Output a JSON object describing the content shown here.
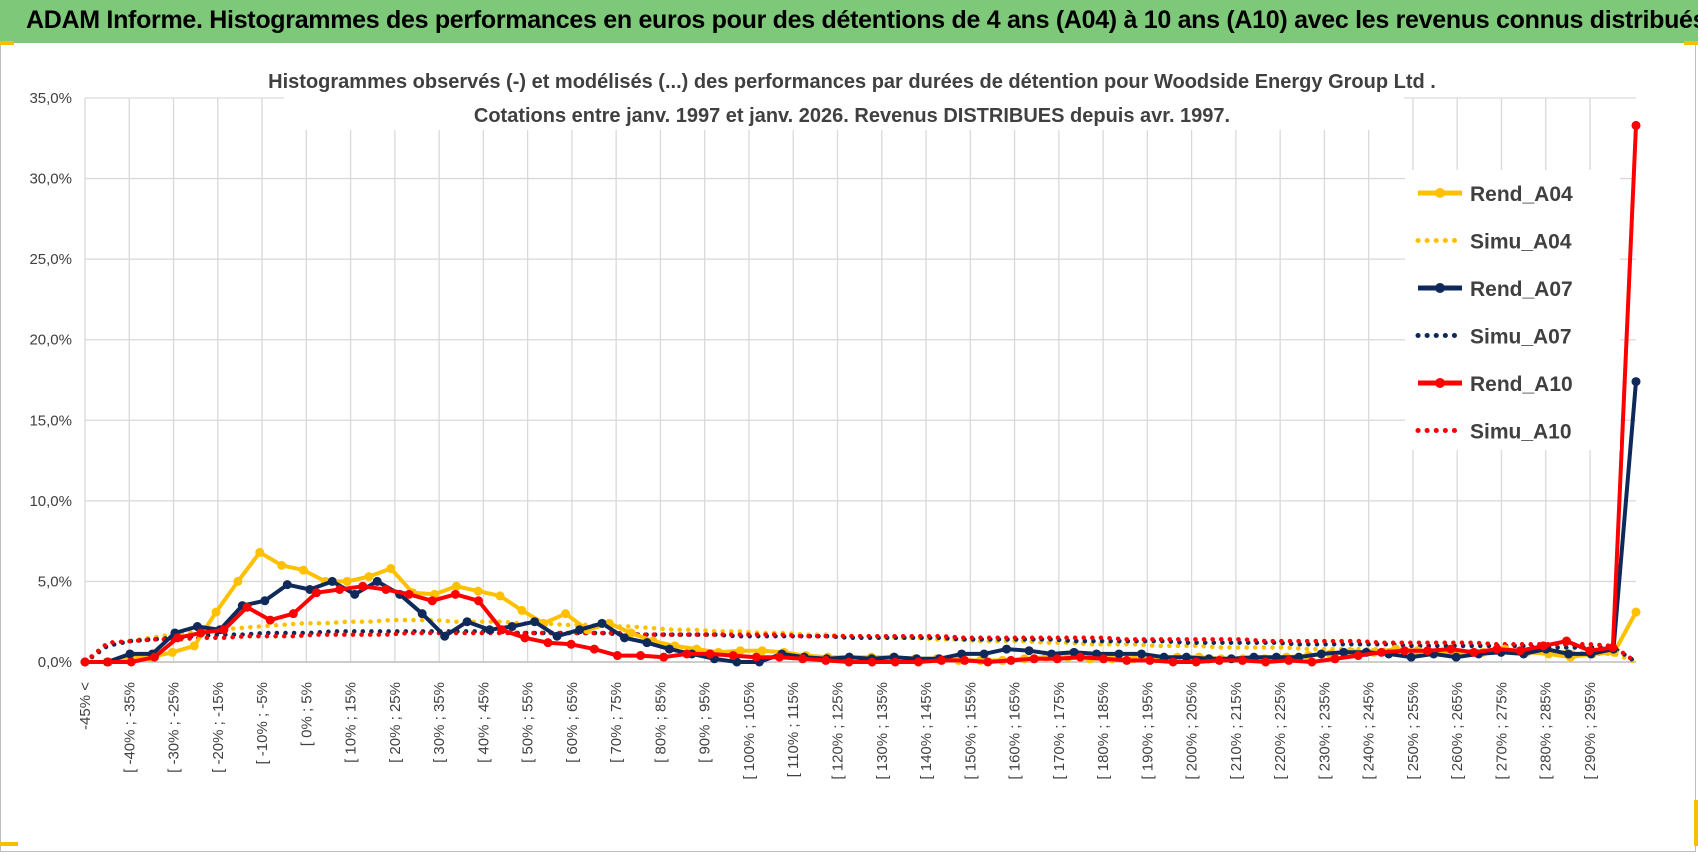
{
  "header": {
    "title": "ADAM Informe. Histogrammes des performances en euros pour des détentions de 4 ans (A04) à 10 ans (A10) avec les revenus connus distribués"
  },
  "colors": {
    "header_bg": "#7ec87a",
    "gold": "#ffc000",
    "navy": "#0f2a5a",
    "red": "#ff0000",
    "grid": "#d9d9d9",
    "text": "#404040"
  },
  "chart_data": {
    "type": "line",
    "title_line1": "Histogrammes observés (-) et modélisés (...) des performances par durées de détention pour Woodside Energy Group Ltd .",
    "title_line2": "Cotations entre janv. 1997 et janv. 2026. Revenus DISTRIBUES depuis avr. 1997.",
    "xlabel": "",
    "ylabel": "",
    "ylim": [
      0,
      35
    ],
    "y_ticks": [
      "0,0%",
      "5,0%",
      "10,0%",
      "15,0%",
      "20,0%",
      "25,0%",
      "30,0%",
      "35,0%"
    ],
    "grid": true,
    "legend_position": "right",
    "x_tick_labels": [
      "-45% <",
      "[ -40% ; -35%",
      "[ -30% ; -25%",
      "[ -20% ; -15%",
      "[ -10% ; -5%",
      "[ 0% ; 5%",
      "[ 10% ; 15%",
      "[ 20% ; 25%",
      "[ 30% ; 35%",
      "[ 40% ; 45%",
      "[ 50% ; 55%",
      "[ 60% ; 65%",
      "[ 70% ; 75%",
      "[ 80% ; 85%",
      "[ 90% ; 95%",
      "[ 100% ; 105%",
      "[ 110% ; 115%",
      "[ 120% ; 125%",
      "[ 130% ; 135%",
      "[ 140% ; 145%",
      "[ 150% ; 155%",
      "[ 160% ; 165%",
      "[ 170% ; 175%",
      "[ 180% ; 185%",
      "[ 190% ; 195%",
      "[ 200% ; 205%",
      "[ 210% ; 215%",
      "[ 220% ; 225%",
      "[ 230% ; 235%",
      "[ 240% ; 245%",
      "[ 250% ; 255%",
      "[ 260% ; 265%",
      "[ 270% ; 275%",
      "[ 280% ; 285%",
      "[ 290% ; 295%"
    ],
    "series": [
      {
        "name": "Rend_A04",
        "style": "solid",
        "color": "#ffc000",
        "markers": true,
        "values": [
          0.0,
          0.0,
          0.3,
          0.3,
          0.6,
          1.0,
          3.1,
          5.0,
          6.8,
          6.0,
          5.7,
          5.0,
          5.0,
          5.3,
          5.8,
          4.3,
          4.2,
          4.7,
          4.4,
          4.1,
          3.2,
          2.4,
          3.0,
          2.0,
          2.4,
          1.8,
          1.3,
          1.0,
          0.8,
          0.6,
          0.7,
          0.7,
          0.6,
          0.4,
          0.3,
          0.3,
          0.3,
          0.3,
          0.2,
          0.2,
          0.1,
          0.1,
          0.1,
          0.2,
          0.3,
          0.3,
          0.2,
          0.2,
          0.2,
          0.2,
          0.3,
          0.3,
          0.2,
          0.2,
          0.2,
          0.3,
          0.4,
          0.5,
          0.6,
          0.6,
          0.8,
          0.7,
          0.6,
          0.5,
          0.6,
          0.8,
          0.6,
          0.5,
          0.3,
          0.5,
          0.6,
          3.1
        ]
      },
      {
        "name": "Simu_A04",
        "style": "dotted",
        "color": "#ffc000",
        "markers": false,
        "values": [
          0.0,
          1.0,
          1.3,
          1.5,
          1.7,
          1.9,
          2.0,
          2.1,
          2.2,
          2.3,
          2.4,
          2.4,
          2.5,
          2.5,
          2.6,
          2.6,
          2.6,
          2.5,
          2.5,
          2.5,
          2.4,
          2.4,
          2.3,
          2.3,
          2.2,
          2.2,
          2.1,
          2.0,
          2.0,
          1.9,
          1.9,
          1.8,
          1.8,
          1.7,
          1.7,
          1.6,
          1.6,
          1.5,
          1.5,
          1.4,
          1.4,
          1.3,
          1.3,
          1.3,
          1.2,
          1.2,
          1.1,
          1.1,
          1.1,
          1.0,
          1.0,
          1.0,
          0.9,
          0.9,
          0.9,
          0.9,
          0.8,
          0.8,
          0.8,
          0.8,
          0.7,
          0.7,
          0.7,
          0.7,
          0.6,
          0.6,
          0.6,
          0.6,
          0.6,
          0.5,
          0.5,
          0.0
        ]
      },
      {
        "name": "Rend_A07",
        "style": "solid",
        "color": "#0f2a5a",
        "markers": true,
        "values": [
          0.0,
          0.0,
          0.5,
          0.5,
          1.8,
          2.2,
          2.0,
          3.5,
          3.8,
          4.8,
          4.5,
          5.0,
          4.2,
          5.0,
          4.2,
          3.0,
          1.6,
          2.5,
          2.0,
          2.2,
          2.5,
          1.6,
          2.0,
          2.4,
          1.5,
          1.2,
          0.8,
          0.5,
          0.2,
          0.0,
          0.0,
          0.5,
          0.3,
          0.2,
          0.3,
          0.2,
          0.3,
          0.2,
          0.2,
          0.5,
          0.5,
          0.8,
          0.7,
          0.5,
          0.6,
          0.5,
          0.5,
          0.5,
          0.3,
          0.3,
          0.2,
          0.2,
          0.3,
          0.3,
          0.3,
          0.5,
          0.6,
          0.6,
          0.5,
          0.3,
          0.5,
          0.3,
          0.5,
          0.6,
          0.5,
          0.8,
          0.5,
          0.5,
          0.8,
          17.4
        ]
      },
      {
        "name": "Simu_A07",
        "style": "dotted",
        "color": "#0f2a5a",
        "markers": false,
        "values": [
          0.0,
          1.0,
          1.3,
          1.4,
          1.5,
          1.6,
          1.7,
          1.7,
          1.8,
          1.8,
          1.8,
          1.9,
          1.9,
          1.9,
          1.9,
          1.9,
          1.9,
          1.9,
          1.9,
          1.8,
          1.8,
          1.8,
          1.8,
          1.8,
          1.7,
          1.7,
          1.7,
          1.7,
          1.7,
          1.6,
          1.6,
          1.6,
          1.6,
          1.6,
          1.5,
          1.5,
          1.5,
          1.5,
          1.5,
          1.4,
          1.4,
          1.4,
          1.4,
          1.4,
          1.3,
          1.3,
          1.3,
          1.3,
          1.3,
          1.2,
          1.2,
          1.2,
          1.2,
          1.2,
          1.1,
          1.1,
          1.1,
          1.1,
          1.1,
          1.0,
          1.0,
          1.0,
          1.0,
          1.0,
          1.0,
          0.9,
          0.9,
          0.9,
          0.9,
          0.0
        ]
      },
      {
        "name": "Rend_A10",
        "style": "solid",
        "color": "#ff0000",
        "markers": true,
        "values": [
          0.0,
          0.0,
          0.0,
          0.3,
          1.5,
          1.8,
          2.0,
          3.4,
          2.6,
          3.0,
          4.3,
          4.5,
          4.7,
          4.5,
          4.2,
          3.8,
          4.2,
          3.8,
          2.0,
          1.5,
          1.2,
          1.1,
          0.8,
          0.4,
          0.4,
          0.3,
          0.5,
          0.5,
          0.4,
          0.3,
          0.3,
          0.2,
          0.1,
          0.0,
          0.0,
          0.0,
          0.0,
          0.1,
          0.1,
          0.0,
          0.1,
          0.2,
          0.2,
          0.3,
          0.2,
          0.1,
          0.1,
          0.0,
          0.0,
          0.1,
          0.1,
          0.0,
          0.1,
          0.0,
          0.2,
          0.4,
          0.6,
          0.7,
          0.7,
          0.8,
          0.6,
          0.8,
          0.7,
          1.0,
          1.3,
          0.7,
          0.9,
          33.3
        ]
      },
      {
        "name": "Simu_A10",
        "style": "dotted",
        "color": "#ff0000",
        "markers": false,
        "values": [
          0.0,
          1.2,
          1.3,
          1.4,
          1.4,
          1.5,
          1.5,
          1.6,
          1.6,
          1.6,
          1.7,
          1.7,
          1.7,
          1.7,
          1.8,
          1.8,
          1.8,
          1.8,
          1.8,
          1.8,
          1.8,
          1.8,
          1.8,
          1.8,
          1.7,
          1.7,
          1.7,
          1.7,
          1.7,
          1.7,
          1.7,
          1.6,
          1.6,
          1.6,
          1.6,
          1.6,
          1.6,
          1.6,
          1.5,
          1.5,
          1.5,
          1.5,
          1.5,
          1.5,
          1.5,
          1.4,
          1.4,
          1.4,
          1.4,
          1.4,
          1.4,
          1.3,
          1.3,
          1.3,
          1.3,
          1.3,
          1.2,
          1.2,
          1.2,
          1.2,
          1.2,
          1.1,
          1.1,
          1.1,
          1.1,
          1.1,
          1.0,
          0.0
        ]
      }
    ]
  }
}
